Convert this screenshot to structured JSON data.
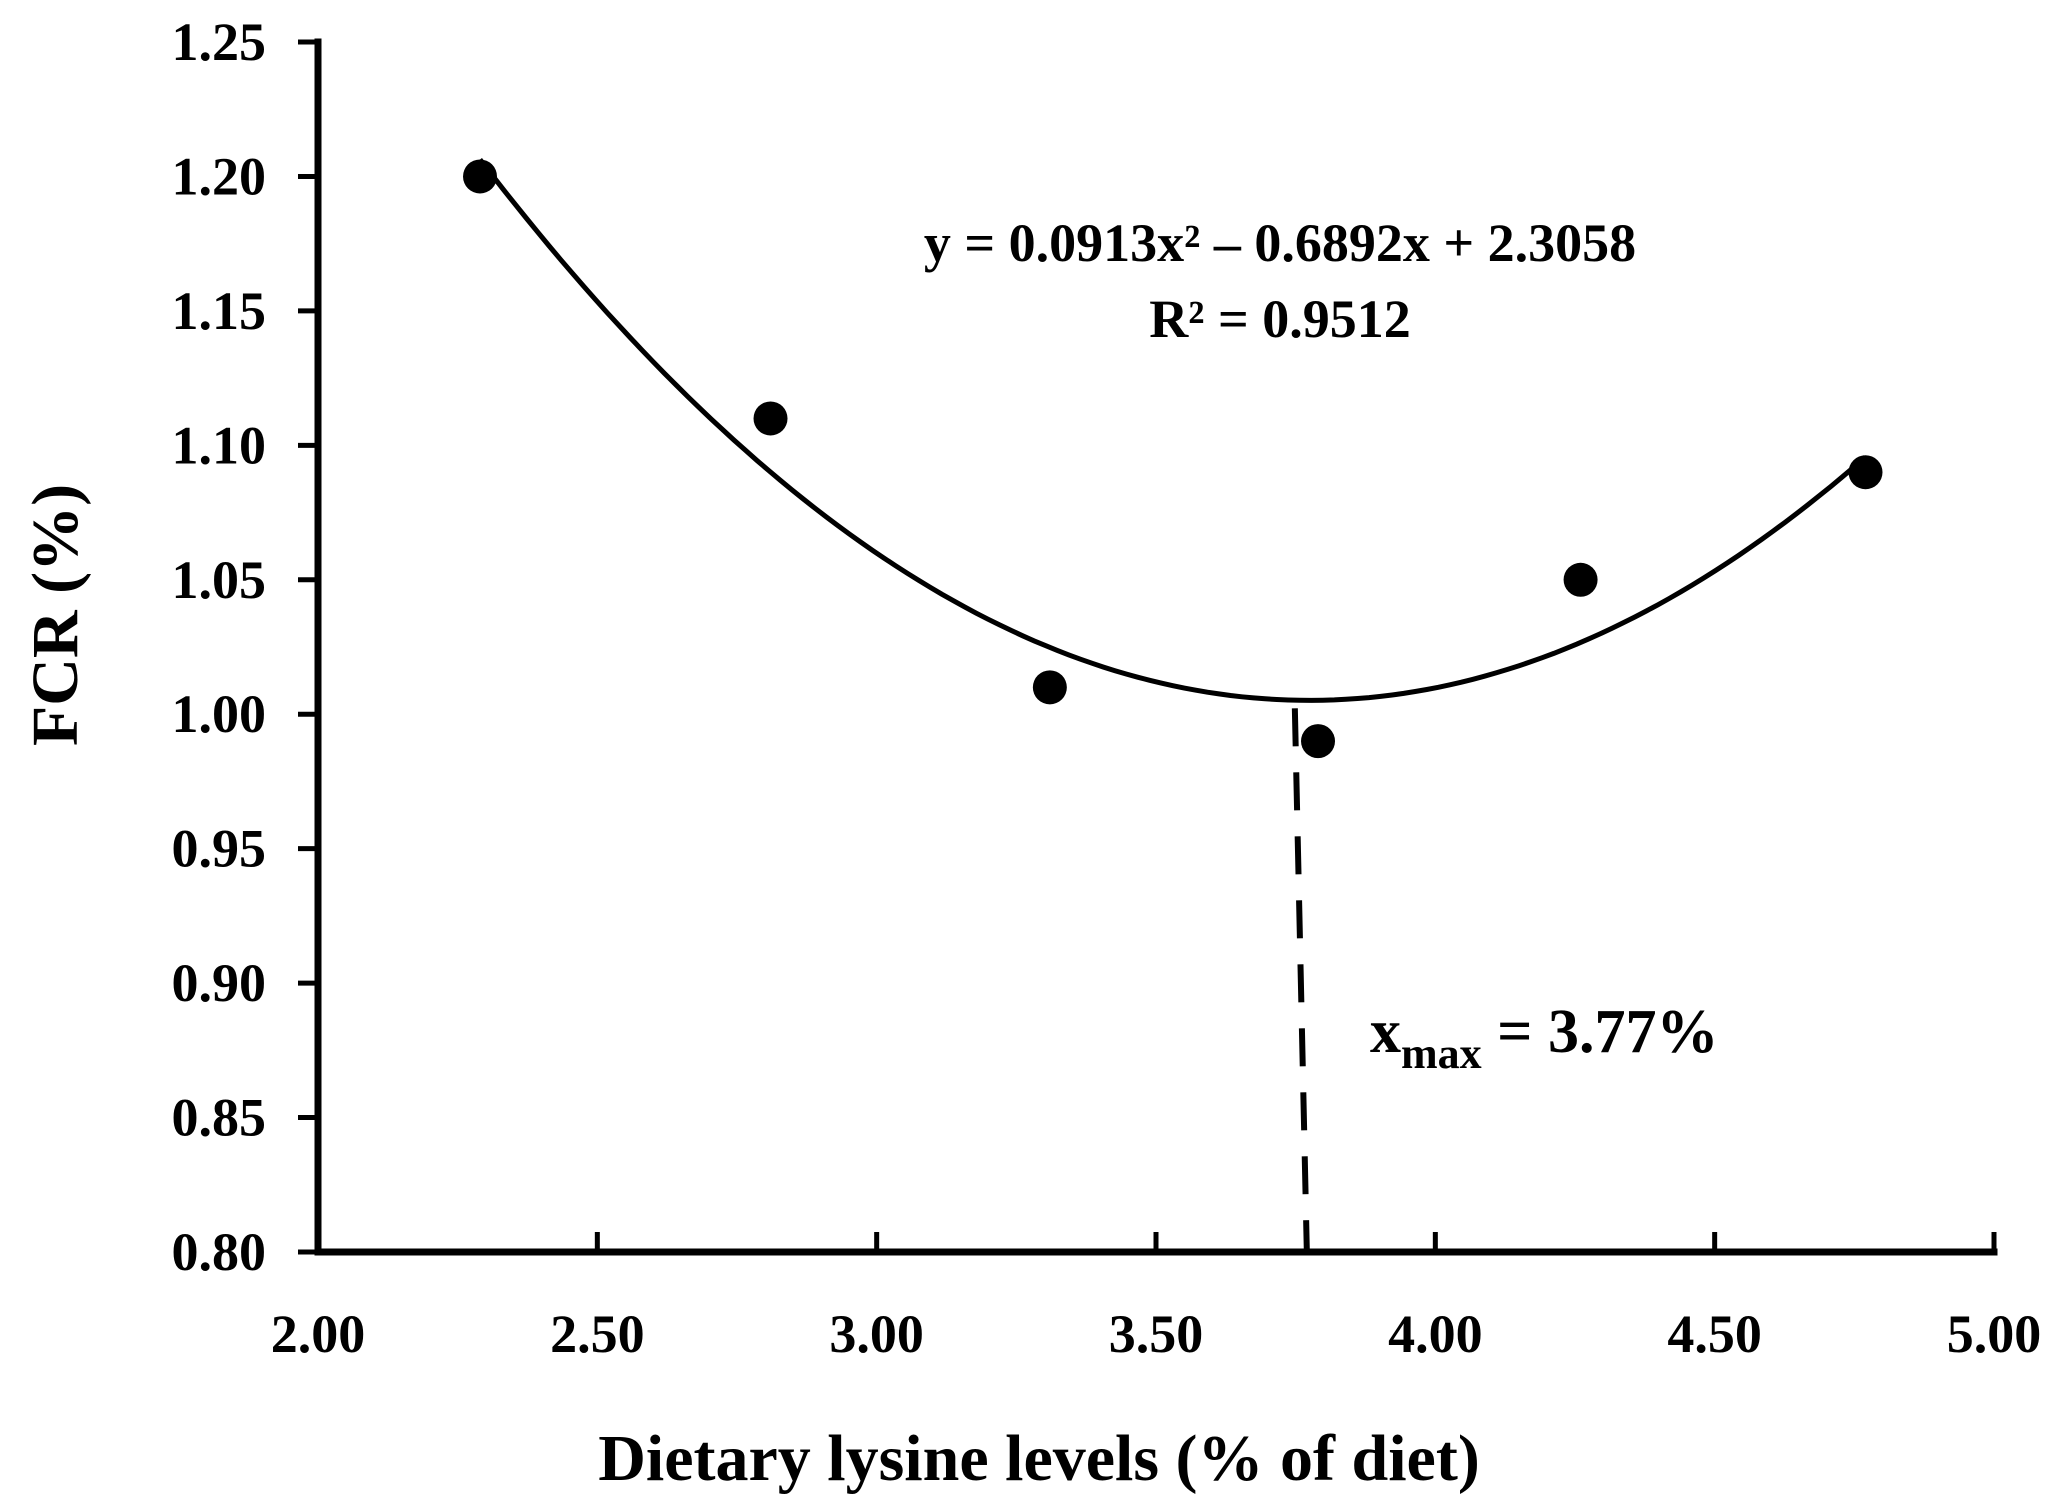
{
  "chart_data": {
    "type": "scatter",
    "title": "",
    "xlabel": "Dietary lysine levels (% of diet)",
    "ylabel": "FCR (%)",
    "xlim": [
      2.0,
      5.0
    ],
    "ylim": [
      0.8,
      1.25
    ],
    "x_ticks": [
      "2.00",
      "2.50",
      "3.00",
      "3.50",
      "4.00",
      "4.50",
      "5.00"
    ],
    "y_ticks": [
      "0.80",
      "0.85",
      "0.90",
      "0.95",
      "1.00",
      "1.05",
      "1.10",
      "1.15",
      "1.20",
      "1.25"
    ],
    "x_tick_values": [
      2.0,
      2.5,
      3.0,
      3.5,
      4.0,
      4.5,
      5.0
    ],
    "y_tick_values": [
      0.8,
      0.85,
      0.9,
      0.95,
      1.0,
      1.05,
      1.1,
      1.15,
      1.2,
      1.25
    ],
    "grid": false,
    "series": [
      {
        "name": "FCR",
        "x": [
          2.29,
          2.81,
          3.31,
          3.79,
          4.26,
          4.77
        ],
        "y": [
          1.2,
          1.11,
          1.01,
          0.99,
          1.05,
          1.09
        ]
      }
    ],
    "fit": {
      "type": "quadratic",
      "a": 0.0913,
      "b": -0.6892,
      "c": 2.3058,
      "x_range": [
        2.29,
        4.77
      ],
      "equation": "y = 0.0913x² – 0.6892x + 2.3058",
      "r_squared": "R² = 0.9512"
    },
    "xmax": {
      "value": 3.77,
      "label_x": "x",
      "label_sub": "max",
      "label_value": " = 3.77%"
    }
  }
}
